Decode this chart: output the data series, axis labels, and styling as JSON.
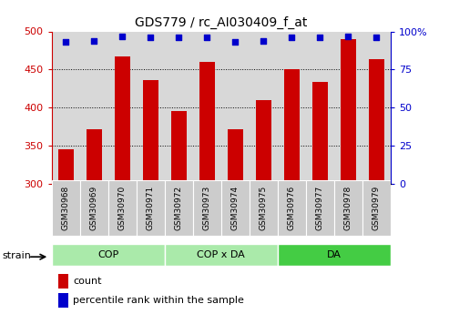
{
  "title": "GDS779 / rc_AI030409_f_at",
  "samples": [
    "GSM30968",
    "GSM30969",
    "GSM30970",
    "GSM30971",
    "GSM30972",
    "GSM30973",
    "GSM30974",
    "GSM30975",
    "GSM30976",
    "GSM30977",
    "GSM30978",
    "GSM30979"
  ],
  "count_values": [
    345,
    372,
    467,
    436,
    396,
    460,
    372,
    410,
    450,
    434,
    490,
    464
  ],
  "percentile_values": [
    93,
    94,
    97,
    96,
    96,
    96,
    93,
    94,
    96,
    96,
    97,
    96
  ],
  "groups": [
    {
      "label": "COP",
      "start": 0,
      "end": 3,
      "color": "#aaeaaa"
    },
    {
      "label": "COP x DA",
      "start": 4,
      "end": 7,
      "color": "#aaeaaa"
    },
    {
      "label": "DA",
      "start": 8,
      "end": 11,
      "color": "#44cc44"
    }
  ],
  "ylim_left": [
    300,
    500
  ],
  "ylim_right": [
    0,
    100
  ],
  "yticks_left": [
    300,
    350,
    400,
    450,
    500
  ],
  "yticks_right": [
    0,
    25,
    50,
    75,
    100
  ],
  "bar_color": "#cc0000",
  "dot_color": "#0000cc",
  "bar_width": 0.55,
  "plot_bg_color": "#d8d8d8",
  "legend_count_label": "count",
  "legend_percentile_label": "percentile rank within the sample",
  "strain_label": "strain",
  "figsize": [
    4.93,
    3.45
  ],
  "dpi": 100
}
